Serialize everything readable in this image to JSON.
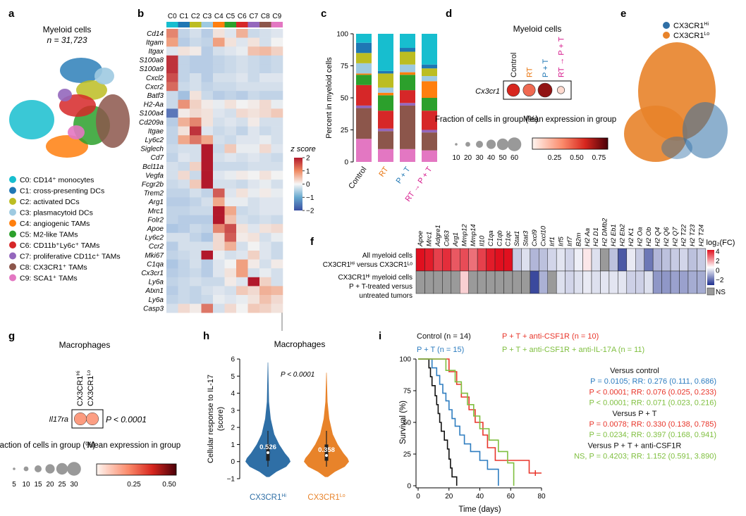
{
  "panel_letters": {
    "a": "a",
    "b": "b",
    "c": "c",
    "d": "d",
    "e": "e",
    "f": "f",
    "g": "g",
    "h": "h",
    "i": "i"
  },
  "panel_a": {
    "title": "Myeloid cells",
    "n_label": "n = 31,723",
    "legend": [
      {
        "label": "C0: CD14⁺ monocytes",
        "color": "#17becf"
      },
      {
        "label": "C1: cross-presenting DCs",
        "color": "#1f77b4"
      },
      {
        "label": "C2: activated DCs",
        "color": "#bcbd22"
      },
      {
        "label": "C3: plasmacytoid DCs",
        "color": "#9ecae1"
      },
      {
        "label": "C4: angiogenic TAMs",
        "color": "#ff7f0e"
      },
      {
        "label": "C5: M2-like TAMs",
        "color": "#2ca02c"
      },
      {
        "label": "C6: CD11b⁺Ly6c⁺ TAMs",
        "color": "#d62728"
      },
      {
        "label": "C7: proliferative CD11c⁺ TAMs",
        "color": "#9467bd"
      },
      {
        "label": "C8: CX3CR1⁺ TAMs",
        "color": "#8c564b"
      },
      {
        "label": "C9: SCA1⁺ TAMs",
        "color": "#e377c2"
      }
    ]
  },
  "panel_b": {
    "chart_data": {
      "type": "heatmap",
      "columns": [
        "C0",
        "C1",
        "C2",
        "C3",
        "C4",
        "C5",
        "C6",
        "C7",
        "C8",
        "C9"
      ],
      "rows": [
        "Cd14",
        "Itgam",
        "Itgax",
        "S100a8",
        "S100a9",
        "Cxcl2",
        "Cxcr2",
        "Batf3",
        "H2-Aa",
        "S100a4",
        "Cd209a",
        "Itgae",
        "Ly6c2",
        "Siglech",
        "Cd7",
        "Bcl11a",
        "Vegfa",
        "Fcgr2b",
        "Trem2",
        "Arg1",
        "Mrc1",
        "Folr2",
        "Apoe",
        "Ly6c2",
        "Ccr2",
        "Mki67",
        "C1qa",
        "Cx3cr1",
        "Ly6a",
        "Atxn1",
        "Ly6a",
        "Casp3"
      ],
      "values": [
        [
          1.2,
          -0.5,
          -0.3,
          -0.6,
          0.2,
          -0.2,
          0.8,
          -0.4,
          -0.3,
          -0.2
        ],
        [
          1.0,
          -0.6,
          -0.4,
          -0.5,
          1.0,
          0.2,
          -0.2,
          0.2,
          -0.3,
          0.0
        ],
        [
          -0.2,
          0.2,
          0.1,
          -0.6,
          -0.3,
          -0.2,
          -0.1,
          0.6,
          0.7,
          0.4
        ],
        [
          1.8,
          -0.5,
          -0.6,
          -0.6,
          -0.5,
          -0.4,
          -0.3,
          -0.4,
          -0.5,
          -0.4
        ],
        [
          1.8,
          -0.5,
          -0.6,
          -0.6,
          -0.5,
          -0.4,
          -0.3,
          -0.4,
          -0.5,
          -0.4
        ],
        [
          1.6,
          -0.5,
          -0.3,
          -0.6,
          -0.3,
          -0.3,
          -0.2,
          -0.4,
          -0.2,
          -0.2
        ],
        [
          1.4,
          -0.4,
          -0.3,
          -0.5,
          -0.4,
          -0.4,
          -0.3,
          -0.3,
          -0.3,
          -0.3
        ],
        [
          -0.4,
          -0.8,
          0.2,
          -0.4,
          -0.6,
          -0.5,
          -0.6,
          -0.4,
          -0.5,
          -0.5
        ],
        [
          -0.4,
          1.1,
          0.4,
          0.1,
          -0.1,
          0.2,
          0.0,
          0.1,
          0.3,
          -0.1
        ],
        [
          -1.6,
          0.1,
          0.3,
          0.2,
          -0.2,
          -0.3,
          0.3,
          0.2,
          0.3,
          0.5
        ],
        [
          -0.6,
          0.8,
          1.2,
          0.2,
          -0.3,
          -0.2,
          -0.3,
          0.1,
          -0.3,
          -0.3
        ],
        [
          -0.5,
          0.2,
          1.8,
          -0.2,
          -0.4,
          -0.3,
          -0.5,
          -0.2,
          -0.4,
          -0.3
        ],
        [
          -0.5,
          0.9,
          1.3,
          0.9,
          -0.3,
          -0.4,
          -0.2,
          -0.2,
          -0.1,
          -0.3
        ],
        [
          -0.4,
          -0.3,
          -0.3,
          2.0,
          -0.4,
          0.5,
          -0.1,
          -0.1,
          0.3,
          -0.2
        ],
        [
          -0.5,
          -0.2,
          -0.3,
          2.0,
          -0.3,
          -0.2,
          -0.3,
          -0.2,
          -0.3,
          -0.4
        ],
        [
          -0.3,
          -0.4,
          0.4,
          2.0,
          -0.4,
          -0.4,
          -0.4,
          -0.3,
          -0.3,
          -0.3
        ],
        [
          -0.3,
          0.3,
          -0.4,
          2.0,
          -0.2,
          -0.1,
          0.1,
          0.0,
          0.2,
          0.0
        ],
        [
          -0.4,
          -0.3,
          0.5,
          2.0,
          -0.3,
          -0.3,
          -0.4,
          -0.2,
          -0.1,
          -0.3
        ],
        [
          -0.5,
          -0.5,
          -0.3,
          -0.5,
          1.5,
          -0.2,
          0.2,
          -0.1,
          0.1,
          -0.1
        ],
        [
          -0.6,
          -0.6,
          -0.5,
          -0.3,
          0.9,
          -0.1,
          -0.1,
          -0.3,
          -0.2,
          -0.2
        ],
        [
          -0.5,
          -0.5,
          -0.4,
          -0.4,
          2.0,
          0.9,
          -0.4,
          -0.3,
          -0.2,
          -0.2
        ],
        [
          -0.5,
          -0.6,
          -0.6,
          -0.6,
          2.0,
          0.6,
          -0.3,
          -0.4,
          -0.3,
          -0.4
        ],
        [
          -0.7,
          -0.6,
          -0.4,
          -0.5,
          1.2,
          1.6,
          0.2,
          -0.2,
          0.2,
          0.3
        ],
        [
          -0.3,
          -0.3,
          -0.5,
          -0.7,
          0.3,
          1.5,
          0.1,
          0.2,
          -0.3,
          -0.1
        ],
        [
          -0.6,
          -0.3,
          -0.3,
          -0.3,
          0.3,
          0.8,
          -0.3,
          0.0,
          -0.2,
          -0.4
        ],
        [
          -0.5,
          -0.4,
          -0.3,
          2.0,
          -0.1,
          -0.3,
          -0.2,
          0.4,
          -0.2,
          -0.4
        ],
        [
          -0.7,
          -0.5,
          -0.3,
          -0.6,
          -0.2,
          0.0,
          1.0,
          0.1,
          -0.3,
          0.1
        ],
        [
          -0.6,
          -0.5,
          -0.4,
          -0.6,
          -0.2,
          0.2,
          1.0,
          -0.3,
          -0.1,
          -0.3
        ],
        [
          -0.5,
          -0.4,
          -0.3,
          -0.4,
          -0.4,
          0.1,
          -0.2,
          2.0,
          0.4,
          -0.3
        ],
        [
          -0.6,
          -0.4,
          -0.5,
          -0.3,
          -0.2,
          -0.3,
          0.5,
          0.3,
          0.8,
          0.7
        ],
        [
          -0.5,
          -0.4,
          -0.5,
          -0.4,
          -0.1,
          -0.2,
          -0.1,
          0.2,
          0.6,
          0.3
        ],
        [
          -0.3,
          0.3,
          0.1,
          1.3,
          -0.3,
          0.3,
          0.0,
          0.5,
          0.4,
          0.2
        ]
      ],
      "colorbar": {
        "label": "z score",
        "ticks": [
          "2",
          "1",
          "0",
          "−1",
          "−2"
        ],
        "range": [
          -2,
          2
        ]
      }
    }
  },
  "panel_c": {
    "chart_data": {
      "type": "bar",
      "stacked": true,
      "ylabel": "Percent in myeloid cells",
      "ylim": [
        0,
        100
      ],
      "yticks": [
        "0",
        "25",
        "50",
        "75",
        "100"
      ],
      "categories": [
        "Control",
        "RT",
        "P + T",
        "RT → P + T"
      ],
      "category_colors": [
        "#111111",
        "#e8730c",
        "#1f77b4",
        "#d6168b"
      ],
      "series": [
        {
          "cluster": "C9",
          "color": "#e377c2",
          "values": [
            18,
            10,
            10,
            9
          ]
        },
        {
          "cluster": "C8",
          "color": "#8c564b",
          "values": [
            24,
            14,
            34,
            14
          ]
        },
        {
          "cluster": "C7",
          "color": "#9467bd",
          "values": [
            2,
            2,
            2,
            2
          ]
        },
        {
          "cluster": "C6",
          "color": "#d62728",
          "values": [
            16,
            14,
            10,
            15
          ]
        },
        {
          "cluster": "C5",
          "color": "#2ca02c",
          "values": [
            8,
            12,
            12,
            10
          ]
        },
        {
          "cluster": "C4",
          "color": "#ff7f0e",
          "values": [
            1,
            2,
            2,
            13
          ]
        },
        {
          "cluster": "C3",
          "color": "#9ecae1",
          "values": [
            8,
            4,
            6,
            4
          ]
        },
        {
          "cluster": "C2",
          "color": "#bcbd22",
          "values": [
            8,
            11,
            10,
            6
          ]
        },
        {
          "cluster": "C1",
          "color": "#1f77b4",
          "values": [
            8,
            2,
            3,
            3
          ]
        },
        {
          "cluster": "C0",
          "color": "#17becf",
          "values": [
            7,
            29,
            11,
            24
          ]
        }
      ]
    }
  },
  "panel_d": {
    "title": "Myeloid cells",
    "gene": "Cx3cr1",
    "chart_data": {
      "type": "scatter",
      "groups": [
        "Control",
        "RT",
        "P + T",
        "RT → P + T"
      ],
      "group_colors": [
        "#111111",
        "#e8730c",
        "#1f77b4",
        "#d6168b"
      ],
      "fraction_pct": [
        45,
        42,
        60,
        10
      ],
      "mean_expression": [
        0.7,
        0.5,
        0.85,
        0.1
      ]
    },
    "size_legend_title": "Fraction of cells in group (%)",
    "size_ticks": [
      "10",
      "20",
      "30",
      "40",
      "50",
      "60"
    ],
    "color_legend_title": "Mean expression in group",
    "color_ticks": [
      "0.25",
      "0.50",
      "0.75"
    ]
  },
  "panel_e": {
    "legend": [
      {
        "label": "CX3CR1",
        "sup": "Hi",
        "color": "#2f6fa6"
      },
      {
        "label": "CX3CR1",
        "sup": "Lo",
        "color": "#e8832a"
      }
    ]
  },
  "panel_f": {
    "chart_data": {
      "type": "heatmap",
      "columns": [
        "Apoe",
        "Mrc1",
        "Adgre1",
        "Cd63",
        "Arg1",
        "Mmp12",
        "Mmp14",
        "Il10",
        "C1qa",
        "C1qb",
        "C1qc",
        "Stat1",
        "Stat3",
        "Cxcl9",
        "Cxcl10",
        "Irf1",
        "Irf5",
        "Irf7",
        "B2m",
        "H2 Aa",
        "H2 D1",
        "H2 DMb2",
        "H2 Eb1",
        "H2 Eb2",
        "H2 K1",
        "H2 Oa",
        "H2 Ob",
        "H2 Q4",
        "H2 Q6",
        "H2 Q7",
        "H2 T22",
        "H2 T23",
        "H2 T24"
      ],
      "rows": [
        {
          "label1": "All myeloid cells",
          "label2": "CX3CR1ᴴⁱ versus CX3CR1ᴸᵒ"
        },
        {
          "label1": "CX3CR1ᴴⁱ myeloid cells",
          "label2": "P + T-treated versus",
          "label3": "untreated tumors"
        }
      ],
      "values": [
        [
          4.5,
          3.8,
          3.2,
          3.5,
          2.8,
          3.0,
          2.4,
          3.2,
          3.8,
          4.0,
          4.0,
          -1.0,
          -0.6,
          -1.4,
          -1.2,
          -0.8,
          -0.5,
          -0.8,
          -0.3,
          0.4,
          -0.6,
          "NS",
          -1.2,
          -3.2,
          -0.4,
          -1.0,
          -2.6,
          -1.4,
          -1.2,
          -1.0,
          -0.8,
          -1.2,
          -1.0
        ],
        [
          "NS",
          "NS",
          "NS",
          "NS",
          "NS",
          0.8,
          "NS",
          "NS",
          "NS",
          "NS",
          "NS",
          "NS",
          "NS",
          -3.5,
          -1.5,
          "NS",
          -0.6,
          -0.8,
          -0.6,
          -0.4,
          -0.6,
          -0.5,
          -0.5,
          -0.5,
          -0.9,
          -0.9,
          -0.6,
          -2.0,
          -2.0,
          -1.8,
          -1.8,
          -1.6,
          -1.6
        ]
      ],
      "colorbar": {
        "label": "log₂(FC)",
        "ticks": [
          "4",
          "2",
          "0",
          "−2"
        ],
        "range": [
          -4,
          4
        ],
        "ns_label": "NS"
      }
    }
  },
  "panel_g": {
    "title": "Macrophages",
    "gene": "Il17ra",
    "p_value": "P < 0.0001",
    "chart_data": {
      "type": "scatter",
      "groups": [
        "CX3CR1Hi",
        "CX3CR1Lo"
      ],
      "group_labels": [
        {
          "base": "CX3CR1",
          "sup": "Hi"
        },
        {
          "base": "CX3CR1",
          "sup": "Lo"
        }
      ],
      "fraction_pct": [
        28,
        28
      ],
      "mean_expression": [
        0.28,
        0.27
      ]
    },
    "size_legend_title": "Fraction of cells in group (%)",
    "size_ticks": [
      "5",
      "10",
      "15",
      "20",
      "25",
      "30"
    ],
    "color_legend_title": "Mean expression in group",
    "color_ticks": [
      "0.25",
      "0.50"
    ]
  },
  "panel_h": {
    "title": "Macrophages",
    "p_value": "P < 0.0001",
    "chart_data": {
      "type": "violin",
      "ylabel": "Cellular response to IL-17 (score)",
      "ylim": [
        -1,
        6
      ],
      "yticks": [
        "−1",
        "0",
        "1",
        "2",
        "3",
        "4",
        "5",
        "6"
      ],
      "groups": [
        {
          "base": "CX3CR1",
          "sup": "Hi",
          "color": "#2f6fa6",
          "median": "0.526",
          "median_value": 0.526,
          "min": -0.9,
          "max": 5.8
        },
        {
          "base": "CX3CR1",
          "sup": "Lo",
          "color": "#e8832a",
          "median": "0.358",
          "median_value": 0.358,
          "min": -0.9,
          "max": 5.2
        }
      ]
    }
  },
  "panel_i": {
    "legend": [
      {
        "label": "Control (n = 14)",
        "color": "#111111"
      },
      {
        "label": "P + T (n = 15)",
        "color": "#2e7dc0"
      },
      {
        "label": "P + T + anti-CSF1R (n = 10)",
        "color": "#e8352a"
      },
      {
        "label": "P + T + anti-CSF1R + anti-IL-17A (n = 11)",
        "color": "#7fbf3f"
      }
    ],
    "chart_data": {
      "type": "line",
      "step": true,
      "xlabel": "Time (days)",
      "ylabel": "Survival (%)",
      "xlim": [
        0,
        80
      ],
      "ylim": [
        0,
        100
      ],
      "xticks": [
        "0",
        "20",
        "40",
        "60",
        "80"
      ],
      "yticks": [
        "0",
        "25",
        "50",
        "75",
        "100"
      ],
      "series": [
        {
          "name": "Control (n = 14)",
          "color": "#111111",
          "x": [
            0,
            7,
            8,
            9,
            11,
            12,
            13,
            14,
            15,
            17,
            19,
            20,
            21,
            22,
            25
          ],
          "y": [
            100,
            93,
            86,
            79,
            71,
            64,
            57,
            50,
            43,
            36,
            29,
            21,
            14,
            7,
            0
          ]
        },
        {
          "name": "P + T (n = 15)",
          "color": "#2e7dc0",
          "x": [
            0,
            9,
            12,
            14,
            16,
            18,
            20,
            22,
            24,
            27,
            30,
            34,
            40,
            45,
            52
          ],
          "y": [
            100,
            93,
            87,
            80,
            73,
            67,
            60,
            53,
            47,
            40,
            33,
            27,
            20,
            13,
            0
          ]
        },
        {
          "name": "P + T + anti-CSF1R (n = 10)",
          "color": "#e8352a",
          "x": [
            0,
            20,
            25,
            28,
            33,
            37,
            42,
            45,
            50,
            72,
            80
          ],
          "y": [
            100,
            90,
            80,
            70,
            60,
            50,
            40,
            30,
            20,
            10,
            10
          ]
        },
        {
          "name": "P + T + anti-CSF1R + anti-IL-17A (n = 11)",
          "color": "#7fbf3f",
          "x": [
            0,
            18,
            24,
            28,
            32,
            36,
            40,
            46,
            52,
            58,
            62
          ],
          "y": [
            100,
            91,
            82,
            73,
            64,
            55,
            45,
            36,
            27,
            18,
            0
          ]
        }
      ]
    },
    "stats": [
      {
        "text": "Versus control",
        "color": "#111111",
        "align": "center"
      },
      {
        "text": "P = 0.0105; RR: 0.276 (0.111, 0.686)",
        "color": "#2e7dc0"
      },
      {
        "text": "P < 0.0001; RR: 0.076 (0.025, 0.233)",
        "color": "#e8352a"
      },
      {
        "text": "P < 0.0001; RR: 0.071 (0.023, 0.216)",
        "color": "#7fbf3f"
      },
      {
        "text": "Versus P + T",
        "color": "#111111",
        "align": "center"
      },
      {
        "text": "P = 0.0078; RR: 0.330 (0.138, 0.785)",
        "color": "#e8352a"
      },
      {
        "text": "P = 0.0234; RR: 0.397 (0.168, 0.941)",
        "color": "#7fbf3f"
      },
      {
        "text": "Versus P + T + anti-CSF1R",
        "color": "#111111",
        "align": "center"
      },
      {
        "text": "NS, P = 0.4203; RR: 1.152 (0.591, 3.890)",
        "color": "#7fbf3f"
      }
    ]
  }
}
